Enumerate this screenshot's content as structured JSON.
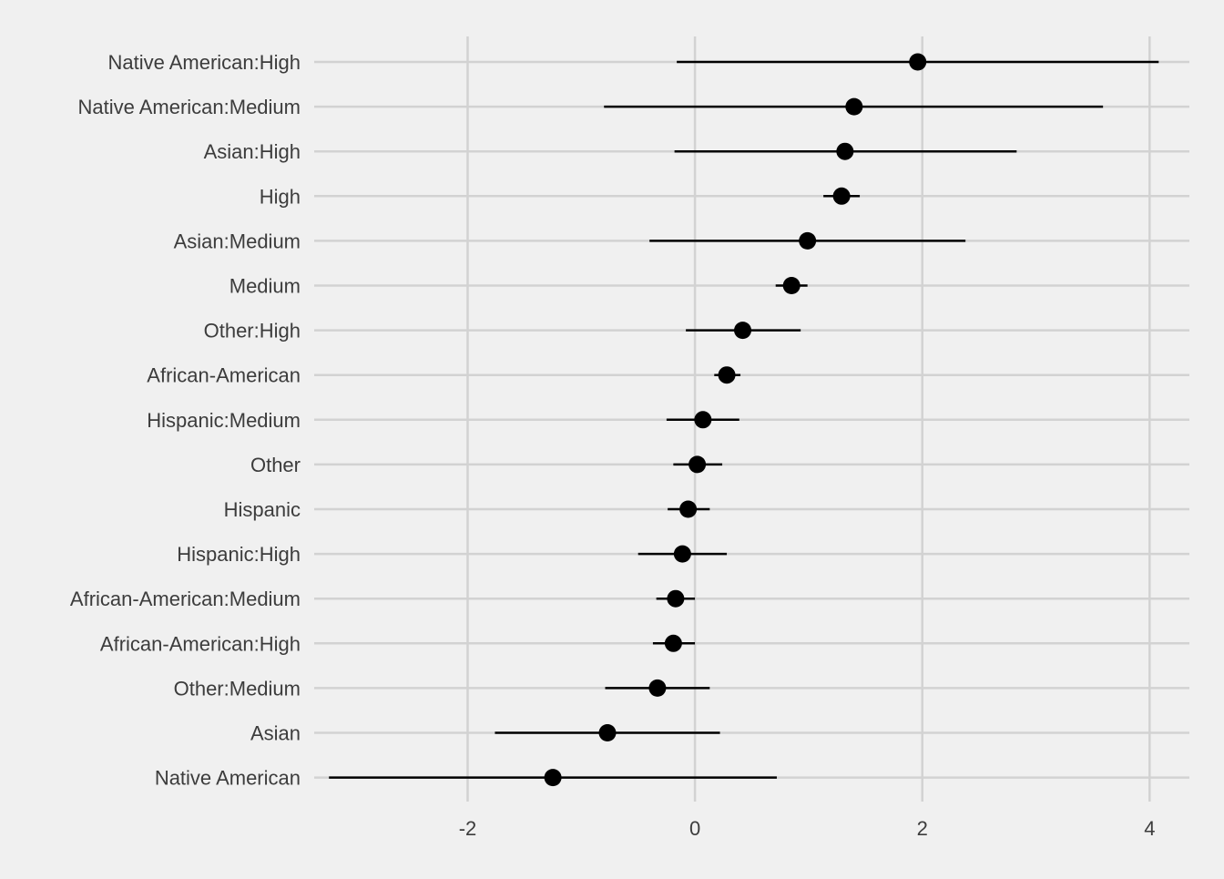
{
  "chart_data": {
    "type": "scatter",
    "subtype": "coefficient-plot",
    "title": "",
    "xlabel": "",
    "ylabel": "",
    "xlim": [
      -3.35,
      4.35
    ],
    "x_ticks": [
      -2,
      0,
      2,
      4
    ],
    "x_tick_labels": [
      "-2",
      "0",
      "2",
      "4"
    ],
    "grid": true,
    "colors": {
      "background": "#f0f0f0",
      "grid": "#d2d2d2",
      "point": "#000000",
      "text": "#3c3c3c"
    },
    "categories": [
      "Native American:High",
      "Native American:Medium",
      "Asian:High",
      "High",
      "Asian:Medium",
      "Medium",
      "Other:High",
      "African-American",
      "Hispanic:Medium",
      "Other",
      "Hispanic",
      "Hispanic:High",
      "African-American:Medium",
      "African-American:High",
      "Other:Medium",
      "Asian",
      "Native American"
    ],
    "estimates": [
      1.96,
      1.4,
      1.32,
      1.29,
      0.99,
      0.85,
      0.42,
      0.28,
      0.07,
      0.02,
      -0.06,
      -0.11,
      -0.17,
      -0.19,
      -0.33,
      -0.77,
      -1.25
    ],
    "lower": [
      -0.16,
      -0.8,
      -0.18,
      1.13,
      -0.4,
      0.71,
      -0.08,
      0.17,
      -0.25,
      -0.19,
      -0.24,
      -0.5,
      -0.34,
      -0.37,
      -0.79,
      -1.76,
      -3.22
    ],
    "upper": [
      4.08,
      3.59,
      2.83,
      1.45,
      2.38,
      0.99,
      0.93,
      0.4,
      0.39,
      0.24,
      0.13,
      0.28,
      0.0,
      0.0,
      0.13,
      0.22,
      0.72
    ]
  }
}
